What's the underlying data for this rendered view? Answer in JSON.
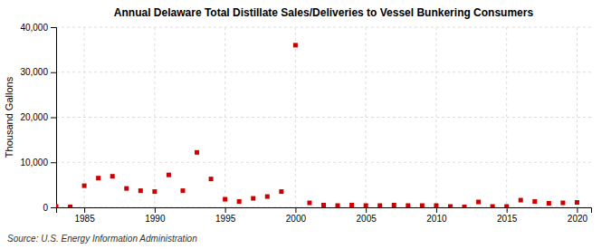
{
  "chart_data": {
    "type": "scatter",
    "title": "Annual Delaware Total Distillate Sales/Deliveries to Vessel Bunkering Consumers",
    "ylabel": "Thousand Gallons",
    "annotations": [
      "Source: U.S. Energy Information Administration"
    ],
    "x": [
      1983,
      1984,
      1985,
      1986,
      1987,
      1988,
      1989,
      1990,
      1991,
      1992,
      1993,
      1994,
      1995,
      1996,
      1997,
      1998,
      1999,
      2000,
      2001,
      2002,
      2003,
      2004,
      2005,
      2006,
      2007,
      2008,
      2009,
      2010,
      2011,
      2012,
      2013,
      2014,
      2015,
      2016,
      2017,
      2018,
      2019,
      2020
    ],
    "values": [
      200,
      100,
      4800,
      6500,
      6900,
      4200,
      3700,
      3500,
      7200,
      3700,
      12200,
      6300,
      1800,
      1300,
      2000,
      2400,
      3500,
      36000,
      1000,
      500,
      400,
      500,
      400,
      400,
      500,
      400,
      400,
      400,
      200,
      100,
      1200,
      200,
      200,
      1600,
      1300,
      900,
      1000,
      1100
    ],
    "color": "#cc0000",
    "marker": "square",
    "xlim": [
      1983,
      2021
    ],
    "ylim": [
      0,
      40000
    ],
    "xticks": [
      1985,
      1990,
      1995,
      2000,
      2005,
      2010,
      2015,
      2020
    ],
    "yticks": [
      0,
      {
        "value": 10000,
        "label": "10,000"
      },
      {
        "value": 20000,
        "label": "20,000"
      },
      {
        "value": 30000,
        "label": "30,000"
      },
      {
        "value": 40000,
        "label": "40,000"
      }
    ],
    "grid": true
  }
}
